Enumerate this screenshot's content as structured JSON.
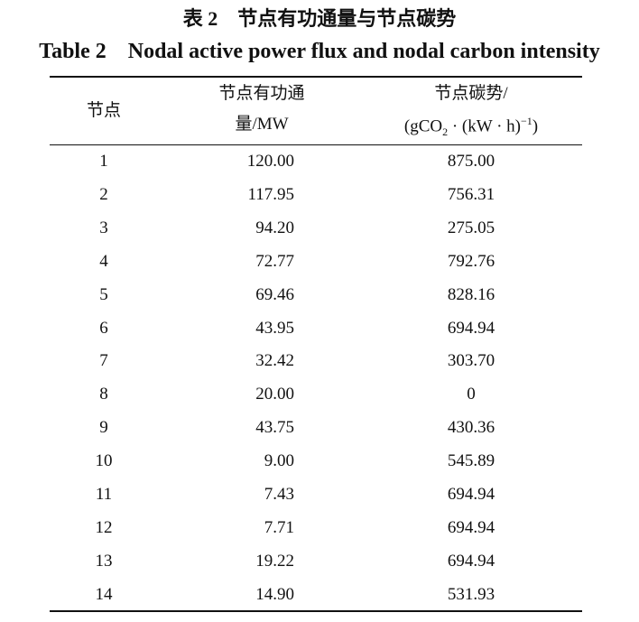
{
  "title_cn": "表 2　节点有功通量与节点碳势",
  "title_en": "Table 2　Nodal active power flux and nodal carbon intensity",
  "table": {
    "header": {
      "node": "节点",
      "power": [
        "节点有功通",
        "量/MW"
      ],
      "carbon": [
        "节点碳势/",
        "(gCO",
        "2",
        " · (kW · h)",
        "−1",
        ")"
      ]
    },
    "rows": [
      [
        "1",
        "120.00",
        "875.00"
      ],
      [
        "2",
        "117.95",
        "756.31"
      ],
      [
        "3",
        "94.20",
        "275.05"
      ],
      [
        "4",
        "72.77",
        "792.76"
      ],
      [
        "5",
        "69.46",
        "828.16"
      ],
      [
        "6",
        "43.95",
        "694.94"
      ],
      [
        "7",
        "32.42",
        "303.70"
      ],
      [
        "8",
        "20.00",
        "0"
      ],
      [
        "9",
        "43.75",
        "430.36"
      ],
      [
        "10",
        "9.00",
        "545.89"
      ],
      [
        "11",
        "7.43",
        "694.94"
      ],
      [
        "12",
        "7.71",
        "694.94"
      ],
      [
        "13",
        "19.22",
        "694.94"
      ],
      [
        "14",
        "14.90",
        "531.93"
      ]
    ]
  }
}
